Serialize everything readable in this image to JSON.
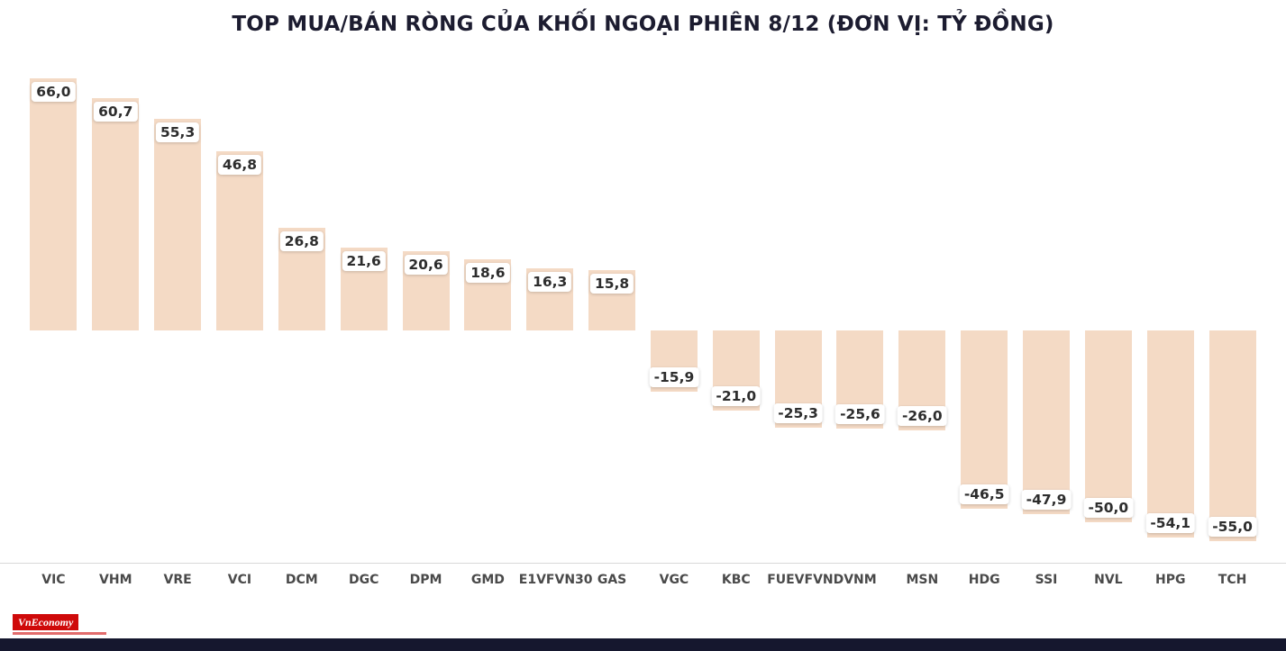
{
  "title": "TOP MUA/BÁN RÒNG CỦA KHỐI NGOẠI PHIÊN 8/12 (ĐƠN VỊ: TỶ ĐỒNG)",
  "logo": {
    "text": "VnEconomy"
  },
  "chart_data": {
    "type": "bar",
    "title": "TOP MUA/BÁN RÒNG CỦA KHỐI NGOẠI PHIÊN 8/12 (ĐƠN VỊ: TỶ ĐỒNG)",
    "categories": [
      "VIC",
      "VHM",
      "VRE",
      "VCI",
      "DCM",
      "DGC",
      "DPM",
      "GMD",
      "E1VFVN30",
      "GAS",
      "VGC",
      "KBC",
      "FUEVFVND",
      "VNM",
      "MSN",
      "HDG",
      "SSI",
      "NVL",
      "HPG",
      "TCH"
    ],
    "values": [
      66.0,
      60.7,
      55.3,
      46.8,
      26.8,
      21.6,
      20.6,
      18.6,
      16.3,
      15.8,
      -15.9,
      -21.0,
      -25.3,
      -25.6,
      -26.0,
      -46.5,
      -47.9,
      -50.0,
      -54.1,
      -55.0
    ],
    "labels": [
      "66,0",
      "60,7",
      "55,3",
      "46,8",
      "26,8",
      "21,6",
      "20,6",
      "18,6",
      "16,3",
      "15,8",
      "-15,9",
      "-21,0",
      "-25,3",
      "-25,6",
      "-26,0",
      "-46,5",
      "-47,9",
      "-50,0",
      "-54,1",
      "-55,0"
    ],
    "xlabel": "",
    "ylabel": "Tỷ đồng",
    "ylim": [
      -60,
      70
    ],
    "grid": false,
    "legend_position": "none",
    "bar_color": "#f4dac5",
    "value_label_background": "#ffffff",
    "value_label_color": "#2d2d2d",
    "axis_label_color": "#4a4a4a"
  }
}
